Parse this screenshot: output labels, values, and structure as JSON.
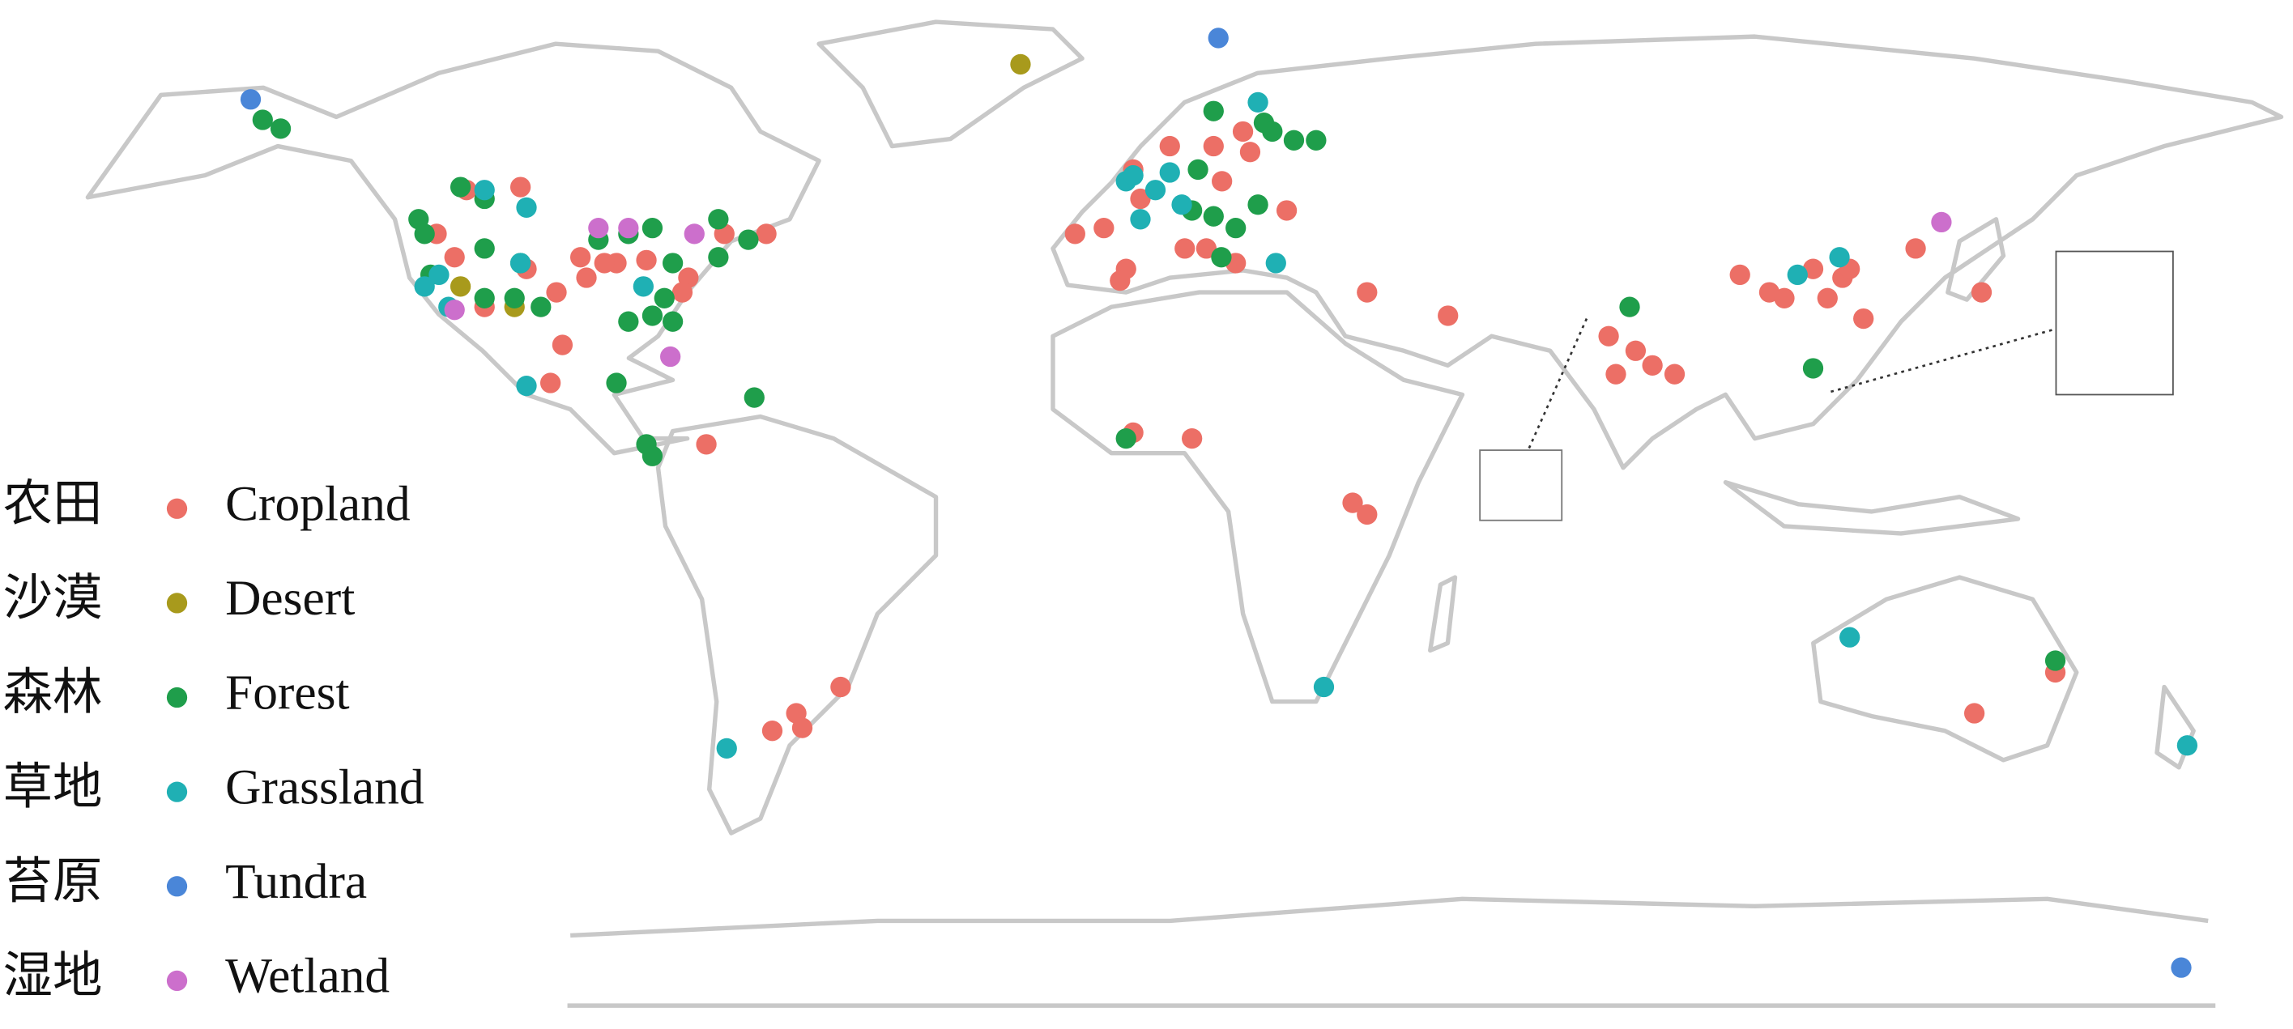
{
  "chart_data": {
    "type": "scatter",
    "series": [
      {
        "name": "Cropland",
        "label": "农田",
        "color": "#ec6f66",
        "lon": [
          -110,
          -101,
          -115,
          -112,
          -100,
          -91,
          -85,
          -80,
          -90,
          -95,
          -73,
          -67,
          -60,
          -94,
          -96,
          -87,
          -107,
          -74,
          -8.5,
          -3.7,
          0,
          -1,
          7.3,
          14.6,
          19.5,
          20.7,
          16,
          2.4,
          1.2,
          9.8,
          18.3,
          26.8,
          13.4,
          1.2,
          11,
          40.2,
          53.7,
          80.5,
          85,
          87.8,
          91.5,
          81.7,
          37.8,
          40.2,
          102.4,
          107.3,
          109.8,
          117,
          119.5,
          120.7,
          123,
          131.7,
          142.7,
          114.6,
          -70,
          -47.6,
          -55,
          -54,
          -59,
          141.5,
          155
        ],
        "lat": [
          47.5,
          48,
          40,
          36,
          34,
          36,
          35,
          35.5,
          32.5,
          30,
          32.5,
          40,
          40,
          21,
          14.5,
          35,
          27.5,
          30,
          40,
          41,
          34,
          32,
          55,
          55,
          57.5,
          54,
          49,
          46,
          51,
          37.5,
          35,
          44,
          37.5,
          6,
          5,
          30,
          26,
          22.5,
          20,
          17.5,
          16,
          16,
          -6,
          -8,
          33,
          30,
          29,
          29,
          32.5,
          34,
          25.5,
          37.5,
          30,
          34,
          4,
          -37.5,
          -42,
          -44.5,
          -45,
          -42,
          -35
        ]
      },
      {
        "name": "Desert",
        "label": "沙漠",
        "color": "#a89a1c",
        "lon": [
          -17.6,
          -111,
          -102
        ],
        "lat": [
          69,
          31,
          27.5
        ]
      },
      {
        "name": "Forest",
        "label": "森林",
        "color": "#1f9e4b",
        "lon": [
          -144,
          -141,
          -118,
          -117,
          -111,
          -107,
          -116,
          -107,
          -102,
          -97.6,
          -107,
          -101,
          -88,
          -83,
          -79,
          -68,
          -68,
          -63,
          -75.6,
          -77,
          -79,
          -83,
          -75.6,
          -85,
          -62,
          -80,
          -79,
          14.6,
          23,
          24.4,
          28,
          31.7,
          12,
          11,
          14.6,
          18.3,
          22,
          15.9,
          84,
          114.6,
          155,
          0
        ],
        "lat": [
          59.5,
          58,
          42.5,
          40,
          48,
          46,
          33,
          29,
          29,
          27.5,
          37.5,
          35,
          39,
          40,
          41,
          42.5,
          36,
          39,
          35,
          29,
          26,
          25,
          25,
          14.5,
          12,
          4,
          2,
          61,
          59,
          57.5,
          56,
          56,
          51,
          44,
          43,
          41,
          45,
          36,
          27.5,
          17,
          -33,
          5
        ]
      },
      {
        "name": "Grassland",
        "label": "草地",
        "color": "#1fb0b4",
        "lon": [
          -107,
          -100,
          -114.6,
          -117,
          -113,
          -101,
          -100,
          0,
          2.4,
          7.3,
          1.2,
          4.9,
          9.3,
          22,
          25,
          112,
          119,
          33,
          120.7,
          177,
          -66.6,
          -80.5
        ],
        "lat": [
          47.5,
          44.5,
          33,
          31,
          27.5,
          35,
          14,
          49,
          42.5,
          50.5,
          50,
          47.5,
          45,
          62.5,
          35,
          33,
          36,
          -37.5,
          -29,
          -47.5,
          -48,
          31
        ]
      },
      {
        "name": "Tundra",
        "label": "苔原",
        "color": "#4a86d8",
        "lon": [
          -146,
          15.4,
          176
        ],
        "lat": [
          63,
          73.5,
          -85.5
        ]
      },
      {
        "name": "Wetland",
        "label": "湿地",
        "color": "#cc6fcc",
        "lon": [
          -88,
          -72,
          -76,
          -112,
          136,
          -83
        ],
        "lat": [
          41,
          40,
          19,
          27,
          42,
          41
        ]
      }
    ]
  }
}
